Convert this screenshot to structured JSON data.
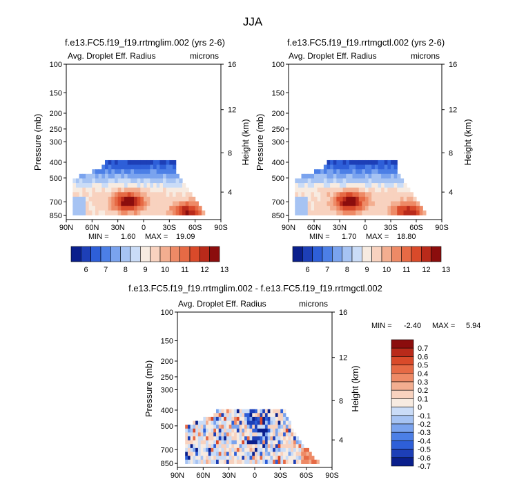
{
  "page_title": "JJA",
  "colors": {
    "blue_scale": [
      "#0a1f8c",
      "#1d3fb7",
      "#2e5fd8",
      "#4c7fe6",
      "#7aa3ee",
      "#a6c3f3",
      "#cadcf7"
    ],
    "neutral": "#f7ebe1",
    "red_scale": [
      "#f8d2bf",
      "#f3ae90",
      "#ee8a66",
      "#e66a45",
      "#d94a2a",
      "#b92a1a",
      "#8b0d0d"
    ]
  },
  "panels": [
    {
      "title": "f.e13.FC5.f19_f19.rrtmglim.002 (yrs 2-6)",
      "var_label": "Avg. Droplet Eff. Radius",
      "units": "microns",
      "ylabel": "Pressure (mb)",
      "y2label": "Height (km)",
      "min_label": "MIN =",
      "min_value": "1.60",
      "max_label": "MAX =",
      "max_value": "19.09"
    },
    {
      "title": "f.e13.FC5.f19_f19.rrtmgctl.002 (yrs 2-6)",
      "var_label": "Avg. Droplet Eff. Radius",
      "units": "microns",
      "ylabel": "Pressure (mb)",
      "y2label": "Height (km)",
      "min_label": "MIN =",
      "min_value": "1.70",
      "max_label": "MAX =",
      "max_value": "18.80"
    },
    {
      "title": "f.e13.FC5.f19_f19.rrtmglim.002 - f.e13.FC5.f19_f19.rrtmgctl.002",
      "var_label": "Avg. Droplet Eff. Radius",
      "units": "microns",
      "ylabel": "Pressure (mb)",
      "y2label": "Height (km)",
      "min_label": "MIN =",
      "min_value": "-2.40",
      "max_label": "MAX =",
      "max_value": "5.94"
    }
  ],
  "chart_data": [
    {
      "type": "heatmap",
      "title": "f.e13.FC5.f19_f19.rrtmglim.002 (yrs 2-6)",
      "xlabel": "",
      "ylabel": "Pressure (mb)",
      "y2label": "Height (km)",
      "x_ticks": [
        "90N",
        "60N",
        "30N",
        "0",
        "30S",
        "60S",
        "90S"
      ],
      "y_ticks": [
        "100",
        "150",
        "200",
        "250",
        "300",
        "400",
        "500",
        "700",
        "850"
      ],
      "y2_ticks": [
        "16",
        "12",
        "8",
        "4"
      ],
      "colorbar_labels": [
        "6",
        "7",
        "8",
        "9",
        "10",
        "11",
        "12",
        "13"
      ],
      "min": 1.6,
      "max": 19.09
    },
    {
      "type": "heatmap",
      "title": "f.e13.FC5.f19_f19.rrtmgctl.002 (yrs 2-6)",
      "xlabel": "",
      "ylabel": "Pressure (mb)",
      "y2label": "Height (km)",
      "x_ticks": [
        "90N",
        "60N",
        "30N",
        "0",
        "30S",
        "60S",
        "90S"
      ],
      "y_ticks": [
        "100",
        "150",
        "200",
        "250",
        "300",
        "400",
        "500",
        "700",
        "850"
      ],
      "y2_ticks": [
        "16",
        "12",
        "8",
        "4"
      ],
      "colorbar_labels": [
        "6",
        "7",
        "8",
        "9",
        "10",
        "11",
        "12",
        "13"
      ],
      "min": 1.7,
      "max": 18.8
    },
    {
      "type": "heatmap",
      "title": "f.e13.FC5.f19_f19.rrtmglim.002 - f.e13.FC5.f19_f19.rrtmgctl.002",
      "xlabel": "",
      "ylabel": "Pressure (mb)",
      "y2label": "Height (km)",
      "x_ticks": [
        "90N",
        "60N",
        "30N",
        "0",
        "30S",
        "60S",
        "90S"
      ],
      "y_ticks": [
        "100",
        "150",
        "200",
        "250",
        "300",
        "400",
        "500",
        "700",
        "850"
      ],
      "y2_ticks": [
        "16",
        "12",
        "8",
        "4"
      ],
      "colorbar_labels": [
        "0.7",
        "0.6",
        "0.5",
        "0.4",
        "0.3",
        "0.2",
        "0.1",
        "0",
        "-0.1",
        "-0.2",
        "-0.3",
        "-0.4",
        "-0.5",
        "-0.6",
        "-0.7"
      ],
      "min": -2.4,
      "max": 5.94
    }
  ]
}
